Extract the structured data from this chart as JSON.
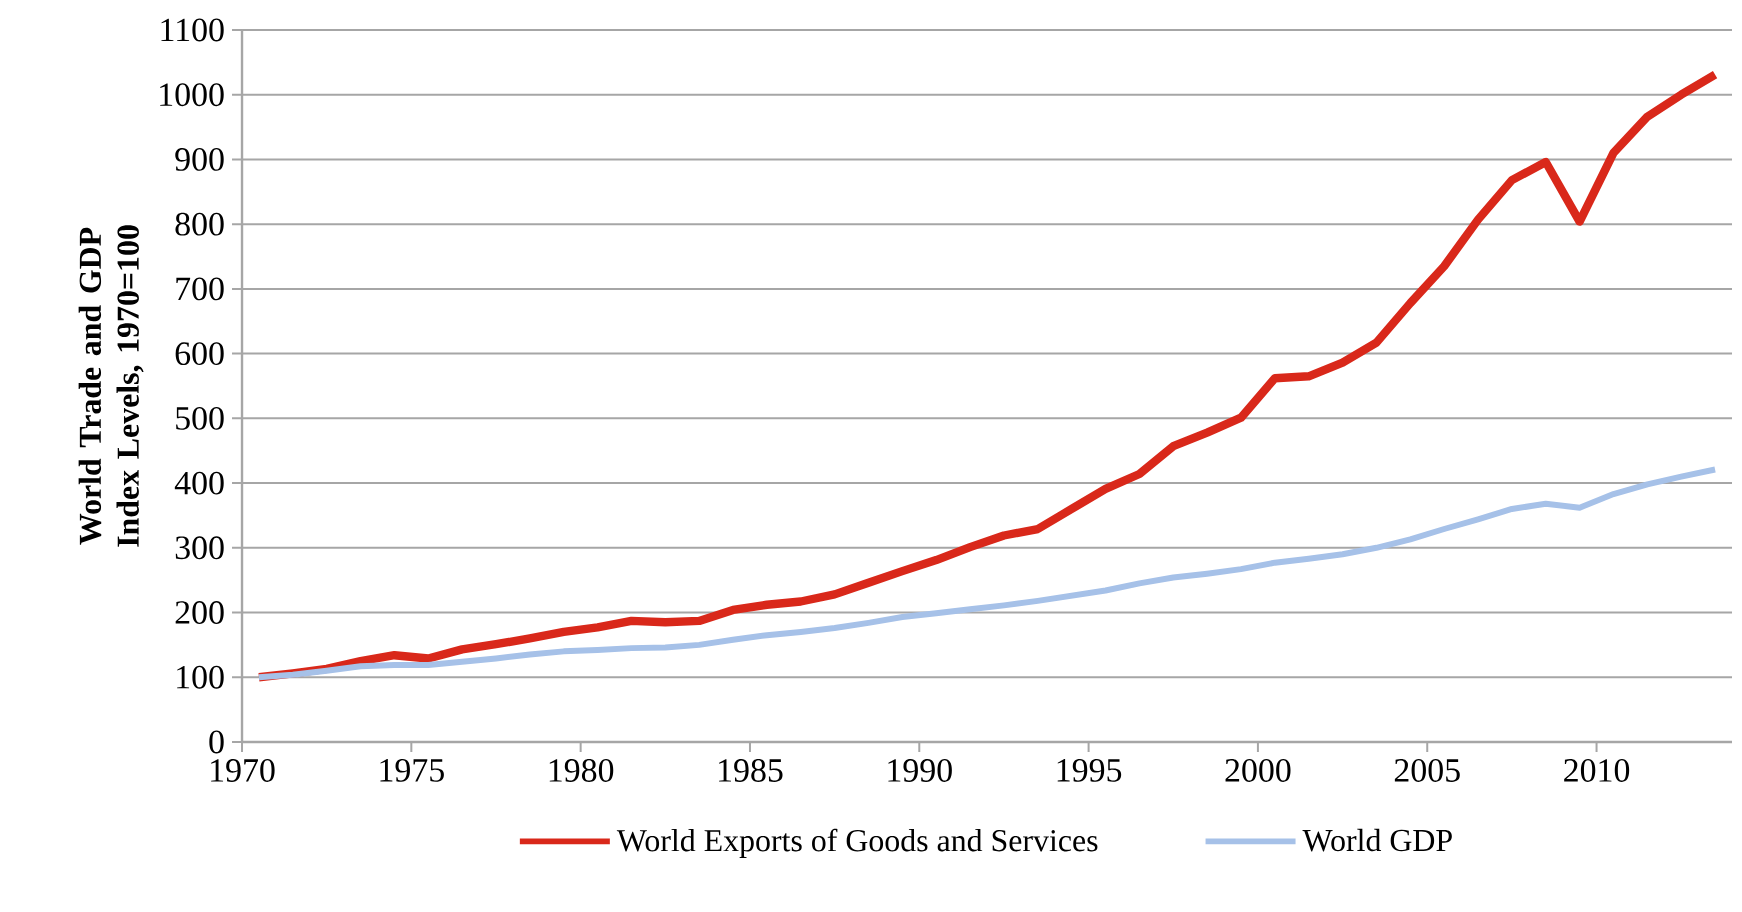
{
  "chart_data": {
    "type": "line",
    "ylabel": "World Trade and GDP Index Levels, 1970=100",
    "x": [
      1970.5,
      1971.5,
      1972.5,
      1973.5,
      1974.5,
      1975.5,
      1976.5,
      1977.5,
      1978.5,
      1979.5,
      1980.5,
      1981.5,
      1982.5,
      1983.5,
      1984.5,
      1985.5,
      1986.5,
      1987.5,
      1988.5,
      1989.5,
      1990.5,
      1991.5,
      1992.5,
      1993.5,
      1994.5,
      1995.5,
      1996.5,
      1997.5,
      1998.5,
      1999.5,
      2000.5,
      2001.5,
      2002.5,
      2003.5,
      2004.5,
      2005.5,
      2006.5,
      2007.5,
      2008.5,
      2009.5,
      2010.5,
      2011.5,
      2012.5,
      2013.5
    ],
    "series": [
      {
        "name": "World Exports of Goods and Services",
        "color": "#d9281a",
        "values": [
          100,
          106,
          113,
          125,
          134,
          129,
          143,
          151,
          160,
          170,
          177,
          187,
          185,
          187,
          204,
          212,
          217,
          228,
          246,
          264,
          281,
          301,
          319,
          329,
          360,
          391,
          414,
          457,
          478,
          501,
          562,
          565,
          586,
          617,
          678,
          735,
          807,
          868,
          896,
          804,
          910,
          966,
          1000,
          1031
        ]
      },
      {
        "name": "World GDP",
        "color": "#a6c1e8",
        "values": [
          100,
          104,
          110,
          117,
          119,
          119,
          124,
          129,
          135,
          140,
          142,
          145,
          146,
          150,
          158,
          165,
          170,
          176,
          184,
          193,
          199,
          205,
          211,
          218,
          226,
          234,
          245,
          254,
          260,
          267,
          277,
          283,
          290,
          300,
          313,
          329,
          344,
          360,
          368,
          362,
          383,
          398,
          410,
          421
        ]
      }
    ],
    "xlim": [
      1970,
      2014
    ],
    "ylim": [
      0,
      1100
    ],
    "xticks": [
      1970,
      1975,
      1980,
      1985,
      1990,
      1995,
      2000,
      2005,
      2010
    ],
    "yticks": [
      0,
      100,
      200,
      300,
      400,
      500,
      600,
      700,
      800,
      900,
      1000,
      1100
    ],
    "grid": "y",
    "legend": "bottom",
    "marker": "none",
    "line_style": "solid"
  }
}
